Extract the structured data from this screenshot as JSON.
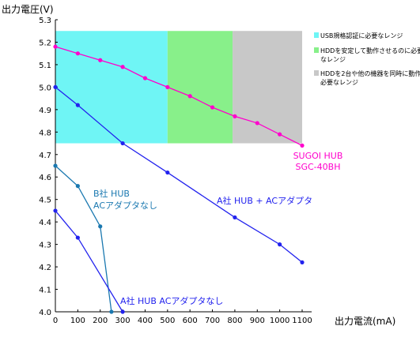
{
  "chart_data": {
    "type": "line",
    "ylabel": "出力電圧(V)",
    "xlabel": "出力電流(mA)",
    "xlim": [
      0,
      1100
    ],
    "ylim": [
      4.0,
      5.3
    ],
    "xticks": [
      "0",
      "100",
      "200",
      "300",
      "400",
      "500",
      "600",
      "700",
      "800",
      "900",
      "1000",
      "1100"
    ],
    "yticks": [
      "4.0",
      "4.1",
      "4.2",
      "4.3",
      "4.4",
      "4.5",
      "4.6",
      "4.7",
      "4.8",
      "4.9",
      "5.0",
      "5.1",
      "5.2",
      "5.3"
    ],
    "grid": false,
    "bands": [
      {
        "x": [
          0,
          500
        ],
        "y": [
          4.75,
          5.25
        ],
        "color": "#6ff5f5"
      },
      {
        "x": [
          500,
          790
        ],
        "y": [
          4.75,
          5.25
        ],
        "color": "#88f08a"
      },
      {
        "x": [
          790,
          1100
        ],
        "y": [
          4.75,
          5.25
        ],
        "color": "#c8c8c8"
      }
    ],
    "legend": [
      {
        "label": "USB規格認証に必要なレンジ",
        "color": "#6ff5f5"
      },
      {
        "label": "HDDを安定して動作させるのに必要なレンジ",
        "color": "#88f08a"
      },
      {
        "label": "HDDを2台や他の機器を同時に動作させるのに必要なレンジ",
        "color": "#c8c8c8"
      }
    ],
    "legend_position": "top-right",
    "series": [
      {
        "name": "SUGOI HUB SGC-40BH",
        "color": "#ff00cc",
        "x": [
          0,
          100,
          200,
          300,
          400,
          500,
          600,
          700,
          800,
          900,
          1000,
          1100
        ],
        "y": [
          5.18,
          5.15,
          5.12,
          5.09,
          5.04,
          5.0,
          4.96,
          4.91,
          4.87,
          4.84,
          4.79,
          4.74
        ]
      },
      {
        "name": "A社 HUB + ACアダプタ",
        "color": "#2222ee",
        "x": [
          0,
          100,
          300,
          500,
          800,
          1000,
          1100
        ],
        "y": [
          5.0,
          4.92,
          4.75,
          4.62,
          4.42,
          4.3,
          4.22
        ]
      },
      {
        "name": "B社 HUB ACアダプタなし",
        "color": "#1a78b0",
        "x": [
          0,
          100,
          200,
          250
        ],
        "y": [
          4.65,
          4.56,
          4.38,
          4.0
        ]
      },
      {
        "name": "A社 HUB ACアダプタなし",
        "color": "#2222ee",
        "x": [
          0,
          100,
          300
        ],
        "y": [
          4.45,
          4.33,
          4.0
        ]
      }
    ],
    "annotations": [
      {
        "lines": [
          "SUGOI HUB",
          "SGC-40BH"
        ],
        "color": "#ff00cc"
      },
      {
        "lines": [
          "A社 HUB + ACアダプタ"
        ],
        "color": "#2222ee"
      },
      {
        "lines": [
          "B社 HUB",
          "ACアダプタなし"
        ],
        "color": "#1a78b0"
      },
      {
        "lines": [
          "A社 HUB ACアダプタなし"
        ],
        "color": "#2222ee"
      }
    ]
  }
}
